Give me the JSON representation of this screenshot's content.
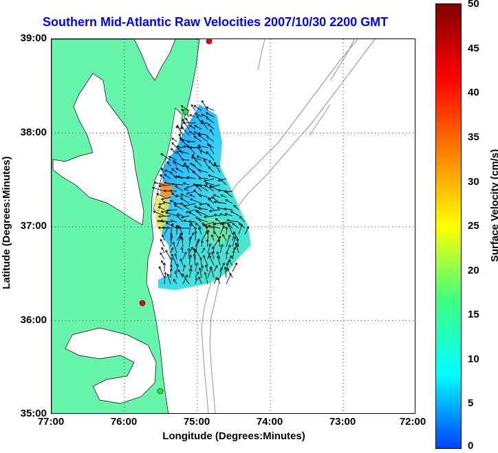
{
  "title": "Southern Mid-Atlantic Raw Velocities 2007/10/30 2200 GMT",
  "x_axis": {
    "label": "Longitude (Degrees:Minutes)",
    "ticks": [
      "77:00",
      "76:00",
      "75:00",
      "74:00",
      "73:00",
      "72:00"
    ]
  },
  "y_axis": {
    "label": "Latitude (Degrees:Minutes)",
    "ticks": [
      "39:00",
      "38:00",
      "37:00",
      "36:00",
      "35:00"
    ]
  },
  "colorbar": {
    "label": "Surface Velocity (cm/s)",
    "ticks": [
      "50",
      "45",
      "40",
      "35",
      "30",
      "25",
      "20",
      "15",
      "10",
      "5",
      "0"
    ],
    "colors": [
      "#0040ff",
      "#00ffff",
      "#40ff80",
      "#ffff00",
      "#ff8000",
      "#ff0000",
      "#800000"
    ]
  },
  "map": {
    "lon_range": [
      77,
      72
    ],
    "lat_range": [
      35,
      39
    ],
    "land_color": "#66f5aa",
    "bathymetry_color": "#999999"
  }
}
